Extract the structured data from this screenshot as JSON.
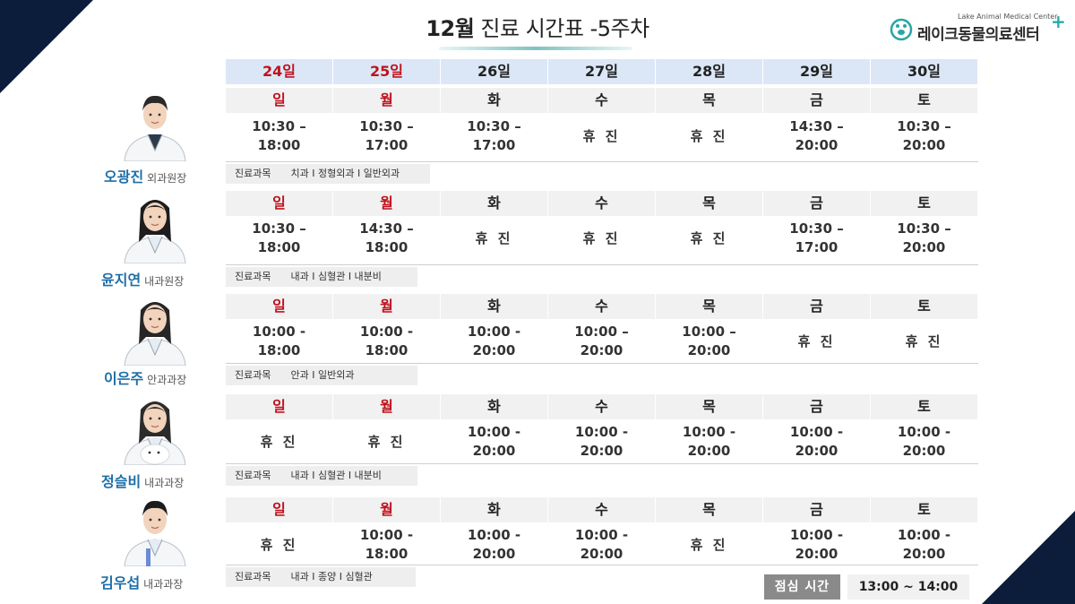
{
  "header": {
    "title_month": "12월",
    "title_rest": " 진료 시간표 -5주차"
  },
  "logo": {
    "name_en": "Lake Animal Medical Center",
    "name_ko": "레이크동물의료센터",
    "plus": "+"
  },
  "dates": [
    {
      "label": "24일",
      "color": "red"
    },
    {
      "label": "25일",
      "color": "red"
    },
    {
      "label": "26일",
      "color": "black"
    },
    {
      "label": "27일",
      "color": "black"
    },
    {
      "label": "28일",
      "color": "black"
    },
    {
      "label": "29일",
      "color": "black"
    },
    {
      "label": "30일",
      "color": "black"
    }
  ],
  "weekdays": [
    "일",
    "월",
    "화",
    "수",
    "목",
    "금",
    "토"
  ],
  "doctors": [
    {
      "name": "오광진",
      "role": "외과원장",
      "dept_label": "진료과목",
      "dept_values": "치과 I 정형외과 I 일반외과",
      "schedule": [
        [
          "10:30 –",
          "18:00"
        ],
        [
          "10:30 –",
          "17:00"
        ],
        [
          "10:30 –",
          "17:00"
        ],
        [
          "휴 진"
        ],
        [
          "휴 진"
        ],
        [
          "14:30 –",
          "20:00"
        ],
        [
          "10:30 –",
          "20:00"
        ]
      ]
    },
    {
      "name": "윤지연",
      "role": "내과원장",
      "dept_label": "진료과목",
      "dept_values": "내과 I 심혈관 I 내분비",
      "schedule": [
        [
          "10:30 –",
          "18:00"
        ],
        [
          "14:30 –",
          "18:00"
        ],
        [
          "휴 진"
        ],
        [
          "휴 진"
        ],
        [
          "휴 진"
        ],
        [
          "10:30 –",
          "17:00"
        ],
        [
          "10:30 –",
          "20:00"
        ]
      ]
    },
    {
      "name": "이은주",
      "role": "안과과장",
      "dept_label": "진료과목",
      "dept_values": "안과 I 일반외과",
      "schedule": [
        [
          "10:00 -",
          "18:00"
        ],
        [
          "10:00 -",
          "18:00"
        ],
        [
          "10:00 -",
          "20:00"
        ],
        [
          "10:00 –",
          "20:00"
        ],
        [
          "10:00 –",
          "20:00"
        ],
        [
          "휴 진"
        ],
        [
          "휴 진"
        ]
      ]
    },
    {
      "name": "정슬비",
      "role": "내과과장",
      "dept_label": "진료과목",
      "dept_values": "내과 I 심혈관 I 내분비",
      "schedule": [
        [
          "휴 진"
        ],
        [
          "휴 진"
        ],
        [
          "10:00 -",
          "20:00"
        ],
        [
          "10:00 -",
          "20:00"
        ],
        [
          "10:00 -",
          "20:00"
        ],
        [
          "10:00 -",
          "20:00"
        ],
        [
          "10:00 -",
          "20:00"
        ]
      ]
    },
    {
      "name": "김우섭",
      "role": "내과과장",
      "dept_label": "진료과목",
      "dept_values": "내과 I 종양 I 심혈관",
      "schedule": [
        [
          "휴 진"
        ],
        [
          "10:00 -",
          "18:00"
        ],
        [
          "10:00 -",
          "20:00"
        ],
        [
          "10:00 -",
          "20:00"
        ],
        [
          "휴 진"
        ],
        [
          "10:00 -",
          "20:00"
        ],
        [
          "10:00 -",
          "20:00"
        ]
      ]
    }
  ],
  "lunch": {
    "label": "점심 시간",
    "time": "13:00 ~ 14:00"
  },
  "colors": {
    "navy": "#0b1d3a",
    "sunday_red": "#c0121e",
    "name_blue": "#1e6fa8",
    "date_bg": "#dbe7f6",
    "teal": "#29a8a8"
  }
}
